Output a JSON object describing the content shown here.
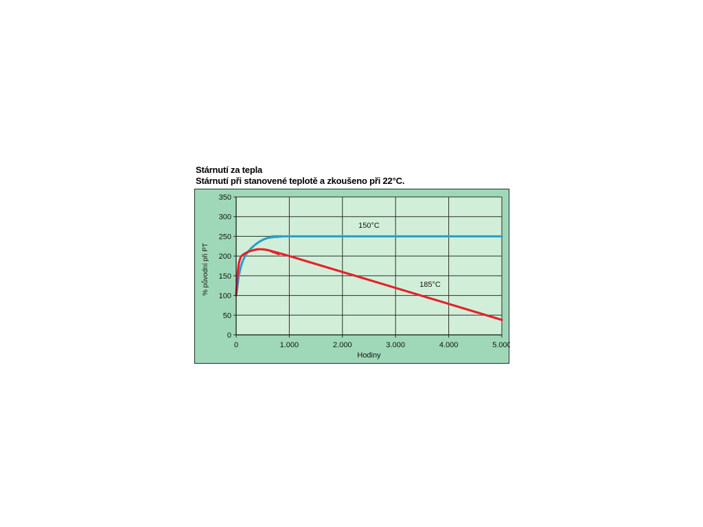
{
  "chart_data": {
    "type": "line",
    "title": "Stárnutí za tepla",
    "subtitle": "Stárnutí při stanovené teplotě a zkoušeno při 22°C.",
    "xlabel": "Hodiny",
    "ylabel": "% původní při PT",
    "xlim": [
      0,
      5000
    ],
    "ylim": [
      0,
      350
    ],
    "x_ticks": [
      0,
      1000,
      2000,
      3000,
      4000,
      5000
    ],
    "x_tick_labels": [
      "0",
      "1.000",
      "2.000",
      "3.000",
      "4.000",
      "5.000"
    ],
    "y_ticks": [
      0,
      50,
      100,
      150,
      200,
      250,
      300,
      350
    ],
    "y_tick_labels": [
      "0",
      "50",
      "100",
      "150",
      "200",
      "250",
      "300",
      "350"
    ],
    "grid": true,
    "series": [
      {
        "name": "150°C",
        "color": "#2b9fc9",
        "x": [
          0,
          25,
          50,
          100,
          150,
          200,
          300,
          400,
          500,
          600,
          700,
          800,
          900,
          1000,
          5000
        ],
        "y": [
          100,
          125,
          150,
          178,
          195,
          207,
          222,
          233,
          241,
          246,
          248,
          249,
          250,
          250,
          250
        ]
      },
      {
        "name": "185°C",
        "color": "#e8202a",
        "x": [
          0,
          25,
          50,
          75,
          100,
          200,
          300,
          400,
          500,
          600,
          700,
          800,
          1000,
          5000
        ],
        "y": [
          100,
          150,
          180,
          193,
          200,
          209,
          214,
          217,
          217,
          215,
          211,
          205,
          200,
          38
        ]
      }
    ],
    "annotations": [
      {
        "text": "150°C",
        "x": 2500,
        "y": 272
      },
      {
        "text": "185°C",
        "x": 3650,
        "y": 122
      }
    ]
  }
}
